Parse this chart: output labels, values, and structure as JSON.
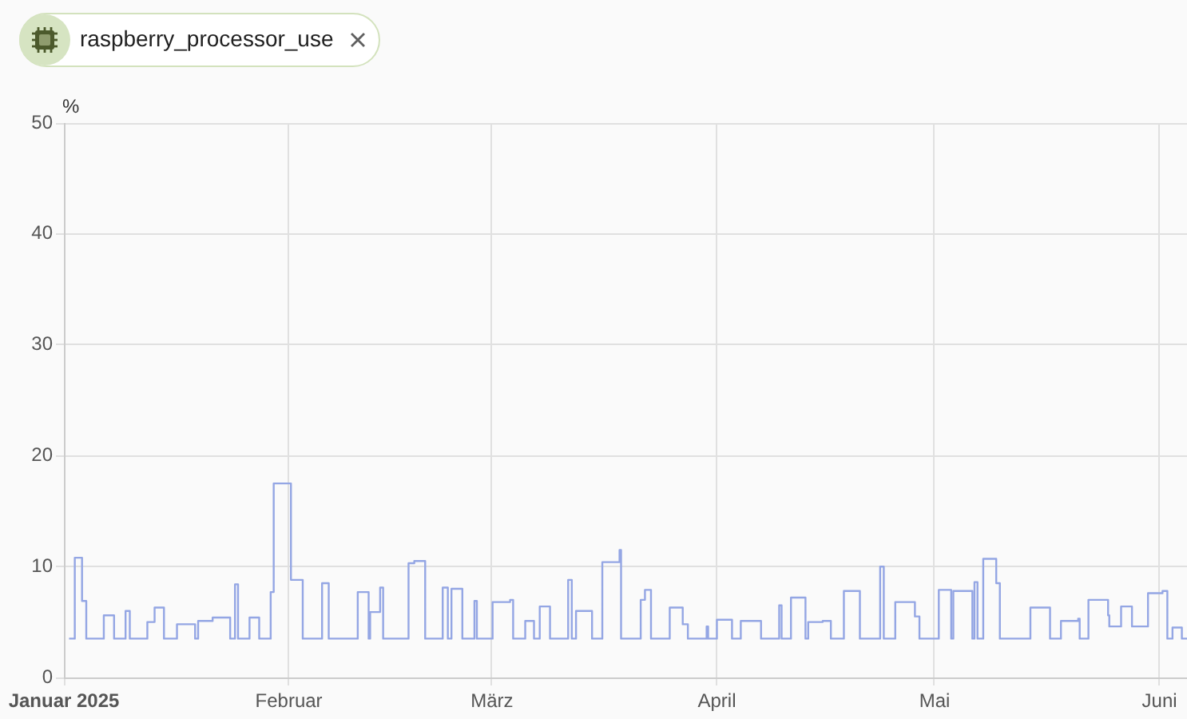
{
  "chart_data": {
    "type": "step",
    "title": "raspberry_processor_use",
    "ylabel": "%",
    "color": "#94a6e4",
    "x": [
      "2025-01-01T17:00",
      "2025-01-02T12:00",
      "2025-01-03T12:00",
      "2025-01-04T02:00",
      "2025-01-06T12:00",
      "2025-01-07T22:00",
      "2025-01-09T12:00",
      "2025-01-10T02:00",
      "2025-01-12T12:00",
      "2025-01-13T12:00",
      "2025-01-14T19:00",
      "2025-01-16T14:00",
      "2025-01-19T02:00",
      "2025-01-19T12:00",
      "2025-01-21T12:00",
      "2025-01-23T22:00",
      "2025-01-24T14:00",
      "2025-01-25T00:00",
      "2025-01-26T14:00",
      "2025-01-27T22:00",
      "2025-01-29T12:00",
      "2025-01-29T22:00",
      "2025-02-01T07:00",
      "2025-02-02T22:00",
      "2025-02-05T14:00",
      "2025-02-06T12:00",
      "2025-02-10T12:00",
      "2025-02-12T00:00",
      "2025-02-12T05:00",
      "2025-02-13T14:00",
      "2025-02-14T00:00",
      "2025-02-17T12:00",
      "2025-02-18T07:00",
      "2025-02-19T19:00",
      "2025-02-22T05:00",
      "2025-02-22T22:00",
      "2025-02-23T10:00",
      "2025-02-24T22:00",
      "2025-02-26T14:00",
      "2025-02-26T22:00",
      "2025-03-01T02:00",
      "2025-03-03T12:00",
      "2025-03-03T22:00",
      "2025-03-05T14:00",
      "2025-03-06T19:00",
      "2025-03-07T14:00",
      "2025-03-09T00:00",
      "2025-03-11T12:00",
      "2025-03-12T00:00",
      "2025-03-12T14:00",
      "2025-03-14T19:00",
      "2025-03-16T05:00",
      "2025-03-18T14:00",
      "2025-03-18T19:00",
      "2025-03-21T12:00",
      "2025-03-22T02:00",
      "2025-03-22T22:00",
      "2025-03-25T12:00",
      "2025-03-27T07:00",
      "2025-03-28T00:00",
      "2025-03-30T14:00",
      "2025-03-30T19:00",
      "2025-04-01T00:00",
      "2025-04-03T02:00",
      "2025-04-04T07:00",
      "2025-04-07T02:00",
      "2025-04-09T14:00",
      "2025-04-09T22:00",
      "2025-04-11T05:00",
      "2025-04-13T05:00",
      "2025-04-13T14:00",
      "2025-04-15T14:00",
      "2025-04-16T17:00",
      "2025-04-18T12:00",
      "2025-04-20T17:00",
      "2025-04-23T12:00",
      "2025-04-24T00:00",
      "2025-04-25T14:00",
      "2025-04-28T07:00",
      "2025-04-28T22:00",
      "2025-05-01T14:00",
      "2025-05-03T07:00",
      "2025-05-03T14:00",
      "2025-05-06T05:00",
      "2025-05-06T12:00",
      "2025-05-06T22:00",
      "2025-05-07T17:00",
      "2025-05-09T12:00",
      "2025-05-10T00:00",
      "2025-05-14T05:00",
      "2025-05-16T22:00",
      "2025-05-18T10:00",
      "2025-05-20T19:00",
      "2025-05-21T00:00",
      "2025-05-22T05:00",
      "2025-05-24T22:00",
      "2025-05-25T02:00",
      "2025-05-26T17:00",
      "2025-05-28T05:00",
      "2025-05-30T10:00",
      "2025-06-01T10:00",
      "2025-06-02T02:00",
      "2025-06-02T19:00",
      "2025-06-04T02:00",
      "2025-06-04T19:00"
    ],
    "values": [
      3.5,
      10.8,
      6.9,
      3.5,
      5.6,
      3.5,
      6.0,
      3.5,
      5.0,
      6.3,
      3.5,
      4.8,
      3.5,
      5.1,
      5.4,
      3.5,
      8.4,
      3.5,
      5.4,
      3.5,
      7.7,
      17.5,
      8.8,
      3.5,
      8.5,
      3.5,
      7.7,
      3.5,
      5.9,
      8.1,
      3.5,
      10.3,
      10.5,
      3.5,
      8.1,
      3.5,
      8.0,
      3.5,
      6.9,
      3.5,
      6.8,
      7.0,
      3.5,
      5.1,
      3.5,
      6.4,
      3.5,
      8.8,
      3.5,
      6.0,
      3.5,
      10.4,
      11.5,
      3.5,
      7.0,
      7.9,
      3.5,
      6.3,
      4.8,
      3.5,
      4.6,
      3.5,
      5.2,
      3.5,
      5.1,
      3.5,
      6.5,
      3.5,
      7.2,
      3.5,
      5.0,
      5.1,
      3.5,
      7.8,
      3.5,
      10.0,
      3.5,
      6.8,
      5.5,
      3.5,
      7.9,
      3.5,
      7.8,
      3.5,
      8.6,
      3.5,
      10.7,
      8.5,
      3.5,
      6.3,
      3.5,
      5.1,
      5.3,
      3.5,
      7.0,
      5.6,
      4.6,
      6.4,
      4.6,
      7.6,
      7.8,
      3.5,
      4.5,
      3.5,
      3.5
    ],
    "xlim": [
      "2025-01-01",
      "2025-06-04T19:00"
    ],
    "xticks": [
      {
        "value": "2025-01-01",
        "label": "Januar 2025"
      },
      {
        "value": "2025-02-01",
        "label": "Februar"
      },
      {
        "value": "2025-03-01",
        "label": "März"
      },
      {
        "value": "2025-04-01",
        "label": "April"
      },
      {
        "value": "2025-05-01",
        "label": "Mai"
      },
      {
        "value": "2025-06-01",
        "label": "Juni"
      }
    ],
    "ylim": [
      0,
      50
    ],
    "yticks": [
      0,
      10,
      20,
      30,
      40,
      50
    ],
    "grid": true
  }
}
